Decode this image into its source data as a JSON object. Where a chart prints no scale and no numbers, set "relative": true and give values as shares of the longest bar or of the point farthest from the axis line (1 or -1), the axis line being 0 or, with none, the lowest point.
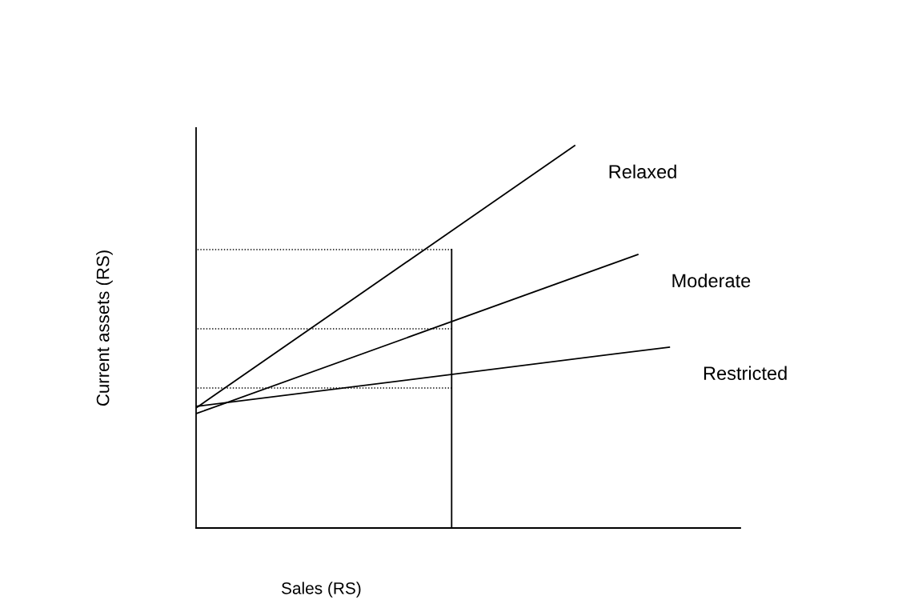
{
  "chart_data": {
    "type": "line",
    "relative": true,
    "xlabel": "Sales (RS)",
    "ylabel": "Current assets (RS)",
    "marker": "none",
    "line_style": "solid",
    "categories": [
      null,
      null,
      null,
      null,
      null,
      null,
      null,
      null,
      null,
      null,
      null,
      null,
      null,
      null,
      null,
      null
    ],
    "series": [
      {
        "name": "Relaxed",
        "color": "#000000",
        "values": [
          0.314,
          null,
          null,
          null,
          null,
          null,
          null,
          null,
          null,
          null,
          null,
          null,
          1,
          null,
          null,
          null
        ]
      },
      {
        "name": "Moderate",
        "color": "#000000",
        "values": [
          0.299,
          null,
          null,
          null,
          null,
          null,
          null,
          null,
          null,
          null,
          null,
          null,
          null,
          null,
          0.715,
          null
        ]
      },
      {
        "name": "Restricted",
        "color": "#000000",
        "values": [
          0.318,
          null,
          null,
          null,
          null,
          null,
          null,
          null,
          null,
          null,
          null,
          null,
          null,
          null,
          null,
          0.473
        ]
      }
    ],
    "ref_lines": [
      {
        "axis": "y",
        "value": 0.728,
        "color": "#000000",
        "line_style": "dotted"
      },
      {
        "axis": "y",
        "value": 0.521,
        "color": "#000000",
        "line_style": "dotted"
      },
      {
        "axis": "y",
        "value": 0.366,
        "color": "#000000",
        "line_style": "dotted"
      }
    ]
  }
}
